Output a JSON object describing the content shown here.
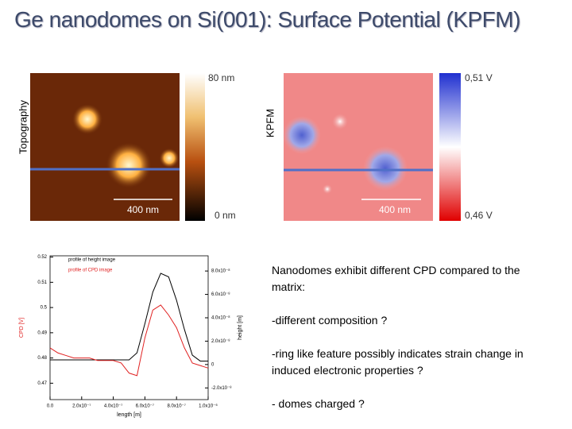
{
  "title": "Ge nanodomes on Si(001): Surface Potential (KPFM)",
  "topography": {
    "label": "Topography",
    "scale_top": "80 nm",
    "scale_bottom": "0 nm",
    "scale_bar": "400 nm"
  },
  "kpfm": {
    "label": "KPFM",
    "scale_top": "0,51 V",
    "scale_bottom": "0,46 V",
    "scale_bar": "400 nm"
  },
  "profile_plot": {
    "type": "line",
    "x": [
      0,
      5e-08,
      1e-07,
      1.5e-07,
      2e-07,
      2.5e-07,
      3e-07,
      3.5e-07,
      4e-07,
      4.5e-07,
      5e-07,
      5.5e-07,
      6e-07,
      6.5e-07,
      7e-07,
      7.5e-07,
      8e-07,
      8.5e-07,
      9e-07,
      9.5e-07,
      1e-06
    ],
    "series": [
      {
        "name": "profile of height image",
        "color": "#000000",
        "axis": "y2",
        "values": [
          4e-09,
          4e-09,
          4e-09,
          4e-09,
          4e-09,
          4e-09,
          4e-09,
          4e-09,
          4e-09,
          4e-09,
          4e-09,
          1e-08,
          3.5e-08,
          6.2e-08,
          7.8e-08,
          7.5e-08,
          5.5e-08,
          3e-08,
          8e-09,
          3e-09,
          3e-09
        ]
      },
      {
        "name": "profile of CPD image",
        "color": "#e02020",
        "values": [
          0.484,
          0.482,
          0.481,
          0.48,
          0.48,
          0.48,
          0.479,
          0.479,
          0.479,
          0.478,
          0.474,
          0.473,
          0.488,
          0.499,
          0.501,
          0.497,
          0.492,
          0.484,
          0.478,
          0.477,
          0.476
        ]
      }
    ],
    "xlabel": "length [m]",
    "ylabel": "CPD [V]",
    "y2label": "height [m]",
    "xlim": [
      0,
      1e-06
    ],
    "xticks": [
      {
        "value": 0,
        "label": "0.0"
      },
      {
        "value": 2e-07,
        "label": "2.0x10⁻⁷"
      },
      {
        "value": 4e-07,
        "label": "4.0x10⁻⁷"
      },
      {
        "value": 6e-07,
        "label": "6.0x10⁻⁷"
      },
      {
        "value": 8e-07,
        "label": "8.0x10⁻⁷"
      },
      {
        "value": 1e-06,
        "label": "1.0x10⁻⁶"
      }
    ],
    "ylim": [
      0.4635,
      0.5205
    ],
    "yticks": [
      0.47,
      0.48,
      0.49,
      0.5,
      0.51,
      0.52
    ],
    "y2lim": [
      -3e-08,
      9.3e-08
    ],
    "y2ticks": [
      {
        "value": -2e-08,
        "label": "-2.0x10⁻⁸"
      },
      0,
      {
        "value": 2e-08,
        "label": "2.0x10⁻⁸"
      },
      {
        "value": 4e-08,
        "label": "4.0x10⁻⁸"
      },
      {
        "value": 6e-08,
        "label": "6.0x10⁻⁸"
      },
      {
        "value": 8e-08,
        "label": "8.0x10⁻⁸"
      }
    ]
  },
  "notes": [
    "Nanodomes exhibit different CPD compared to the matrix:",
    "-different composition ?",
    "-ring like feature possibly indicates strain change in induced electronic properties ?",
    "- domes charged ?"
  ]
}
